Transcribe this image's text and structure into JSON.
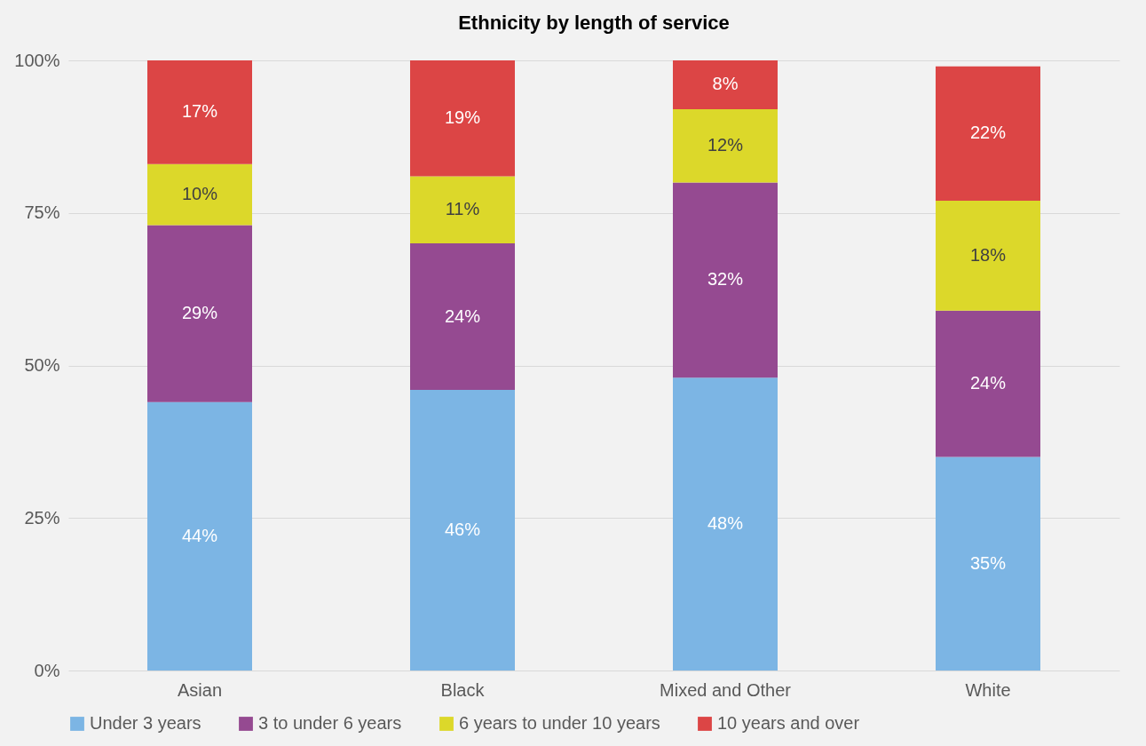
{
  "chart_data": {
    "type": "bar",
    "title": "Ethnicity by length of service",
    "stacked": true,
    "categories": [
      "Asian",
      "Black",
      "Mixed and Other",
      "White"
    ],
    "series": [
      {
        "name": "Under 3 years",
        "color": "#7cb5e4",
        "values": [
          44,
          46,
          48,
          35
        ],
        "value_labels": [
          "44%",
          "46%",
          "48%",
          "35%"
        ]
      },
      {
        "name": "3 to under 6 years",
        "color": "#954a91",
        "values": [
          29,
          24,
          32,
          24
        ],
        "value_labels": [
          "29%",
          "24%",
          "32%",
          "24%"
        ]
      },
      {
        "name": "6 years to under 10 years",
        "color": "#dcd82a",
        "values": [
          10,
          11,
          12,
          18
        ],
        "value_labels": [
          "10%",
          "11%",
          "12%",
          "18%"
        ]
      },
      {
        "name": "10 years and over",
        "color": "#dc4545",
        "values": [
          17,
          19,
          8,
          22
        ],
        "value_labels": [
          "17%",
          "19%",
          "8%",
          "22%"
        ]
      }
    ],
    "ylim": [
      0,
      100
    ],
    "yticks": [
      {
        "value": 0,
        "label": "0%"
      },
      {
        "value": 25,
        "label": "25%"
      },
      {
        "value": 50,
        "label": "50%"
      },
      {
        "value": 75,
        "label": "75%"
      },
      {
        "value": 100,
        "label": "100%"
      }
    ],
    "grid": "y",
    "legend": "bottom"
  }
}
